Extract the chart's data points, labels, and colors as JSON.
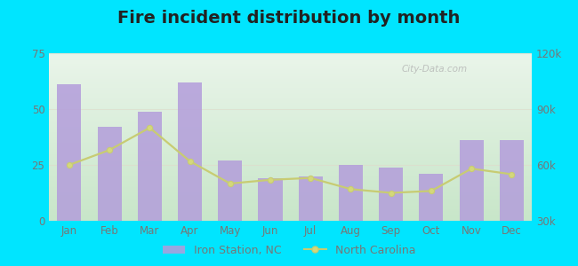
{
  "title": "Fire incident distribution by month",
  "months": [
    "Jan",
    "Feb",
    "Mar",
    "Apr",
    "May",
    "Jun",
    "Jul",
    "Aug",
    "Sep",
    "Oct",
    "Nov",
    "Dec"
  ],
  "bar_values": [
    61,
    42,
    49,
    62,
    27,
    19,
    20,
    25,
    24,
    21,
    36,
    36
  ],
  "line_values_right": [
    60000,
    68000,
    80000,
    62000,
    50000,
    52000,
    53000,
    47000,
    45000,
    46000,
    58000,
    55000
  ],
  "bar_color": "#b39ddb",
  "bar_alpha": 0.85,
  "line_color": "#c8cc72",
  "line_marker_color": "#d4d87a",
  "background_outer": "#00e5ff",
  "background_top": "#eaf5ea",
  "background_bottom": "#c8e6c9",
  "left_ylim": [
    0,
    75
  ],
  "left_yticks": [
    0,
    25,
    50,
    75
  ],
  "right_ylim": [
    30000,
    120000
  ],
  "right_yticks": [
    30000,
    60000,
    90000,
    120000
  ],
  "right_yticklabels": [
    "30k",
    "60k",
    "90k",
    "120k"
  ],
  "watermark": "City-Data.com",
  "legend_label_bar": "Iron Station, NC",
  "legend_label_line": "North Carolina",
  "title_fontsize": 14,
  "tick_fontsize": 8.5,
  "legend_fontsize": 9,
  "tick_color": "#777777",
  "grid_color": "#ddddcc",
  "grid_alpha": 0.7
}
